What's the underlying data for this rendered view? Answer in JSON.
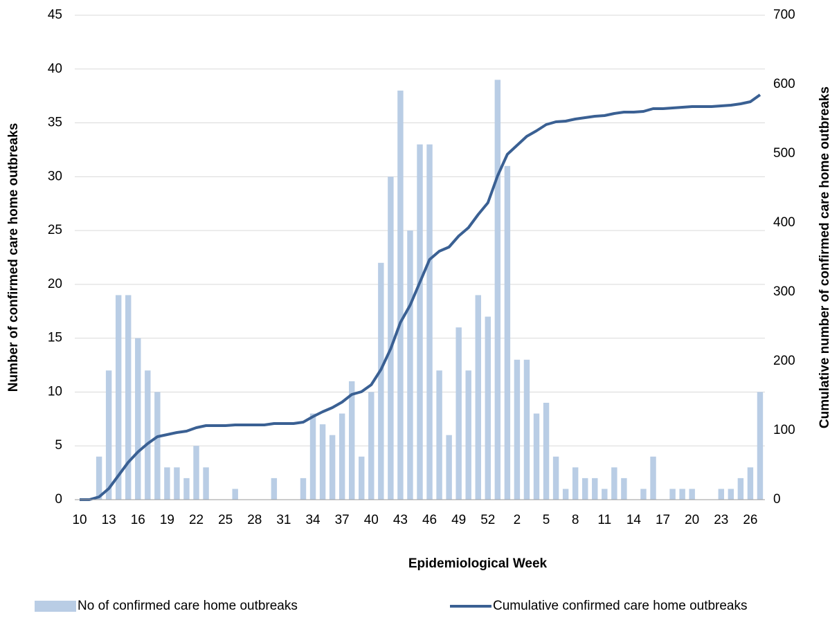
{
  "chart_data": {
    "type": "bar",
    "x_label": "Epidemiological Week",
    "y_label": "Number of confirmed care home outbreaks",
    "y2_label": "Cumulative number of confirmed care home outbreaks",
    "categories": [
      "10",
      null,
      null,
      "13",
      null,
      null,
      "16",
      null,
      null,
      "19",
      null,
      null,
      "22",
      null,
      null,
      "25",
      null,
      null,
      "28",
      null,
      null,
      "31",
      null,
      null,
      "34",
      null,
      null,
      "37",
      null,
      null,
      "40",
      null,
      null,
      "43",
      null,
      null,
      "46",
      null,
      null,
      "49",
      null,
      null,
      "52",
      null,
      null,
      "2",
      null,
      null,
      "5",
      null,
      null,
      "8",
      null,
      null,
      "11",
      null,
      null,
      "14",
      null,
      null,
      "17",
      null,
      null,
      "20",
      null,
      null,
      "23",
      null,
      null,
      "26",
      null
    ],
    "series": [
      {
        "name": "No of confirmed care home outbreaks",
        "color": "#b9cde5",
        "values": [
          0,
          0,
          4,
          12,
          19,
          19,
          15,
          12,
          10,
          3,
          3,
          2,
          5,
          3,
          0,
          0,
          1,
          0,
          0,
          0,
          2,
          0,
          0,
          2,
          8,
          7,
          6,
          8,
          11,
          4,
          10,
          22,
          30,
          38,
          25,
          33,
          33,
          12,
          6,
          16,
          12,
          19,
          17,
          39,
          31,
          13,
          13,
          8,
          9,
          4,
          1,
          3,
          2,
          2,
          1,
          3,
          2,
          0,
          1,
          4,
          0,
          1,
          1,
          1,
          0,
          0,
          1,
          1,
          2,
          3,
          10
        ]
      },
      {
        "name": "Cumulative confirmed care home outbreaks",
        "color": "#3a6093",
        "type": "line",
        "axis": "y2",
        "values": [
          0,
          0,
          4,
          16,
          35,
          54,
          69,
          81,
          91,
          94,
          97,
          99,
          104,
          107,
          107,
          107,
          108,
          108,
          108,
          108,
          110,
          110,
          110,
          112,
          120,
          127,
          133,
          141,
          152,
          156,
          166,
          188,
          218,
          256,
          281,
          314,
          347,
          359,
          365,
          381,
          393,
          412,
          429,
          468,
          499,
          512,
          525,
          533,
          542,
          546,
          547,
          550,
          552,
          554,
          555,
          558,
          560,
          560,
          561,
          565,
          565,
          566,
          567,
          568,
          568,
          568,
          569,
          570,
          572,
          575,
          585
        ]
      }
    ],
    "ylim": [
      0,
      45
    ],
    "yticks": [
      0,
      5,
      10,
      15,
      20,
      25,
      30,
      35,
      40,
      45
    ],
    "y2lim": [
      0,
      700
    ],
    "y2ticks": [
      0,
      100,
      200,
      300,
      400,
      500,
      600,
      700
    ],
    "grid": true,
    "legend": "bottom"
  }
}
